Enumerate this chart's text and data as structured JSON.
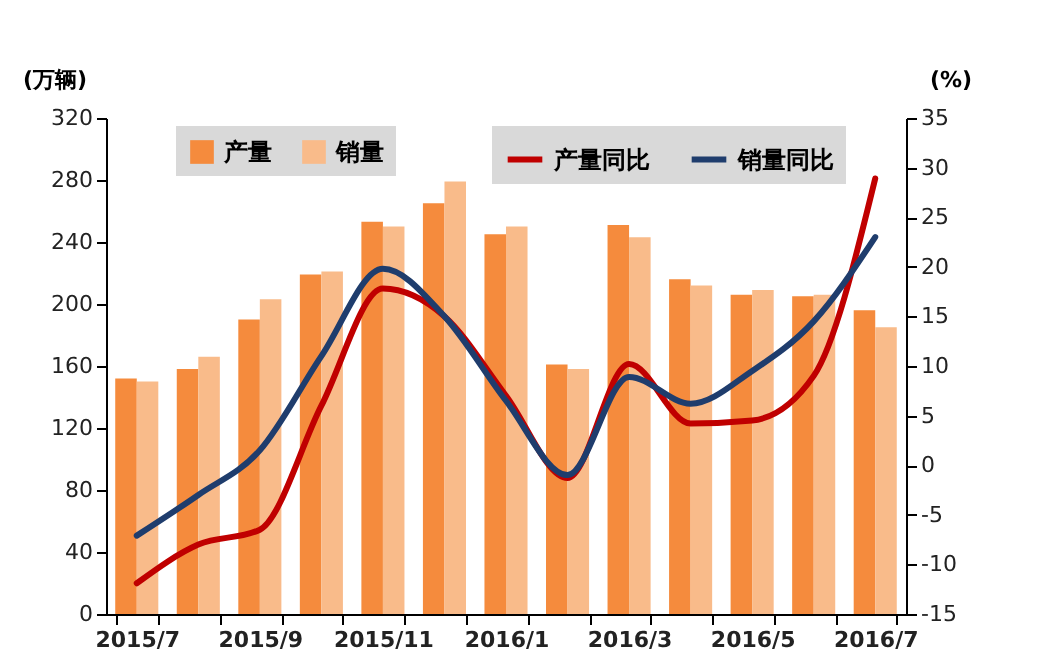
{
  "chart_data": {
    "type": "bar",
    "categories": [
      "2015/7",
      null,
      "2015/9",
      null,
      "2015/11",
      null,
      "2016/1",
      null,
      "2016/3",
      null,
      "2016/5",
      null,
      "2016/7"
    ],
    "ylabel": "(万辆)",
    "y2label": "(%)",
    "ylim": [
      0,
      320
    ],
    "yticks": [
      0,
      40,
      80,
      120,
      160,
      200,
      240,
      280,
      320
    ],
    "y2lim": [
      -15,
      35
    ],
    "y2ticks": [
      -15,
      -10,
      -5,
      0,
      5,
      10,
      15,
      20,
      25,
      30,
      35
    ],
    "series": [
      {
        "name": "产量",
        "color": "#f58b3d",
        "values": [
          152,
          158,
          190,
          219,
          253,
          265,
          245,
          161,
          251,
          216,
          206,
          205,
          196
        ]
      },
      {
        "name": "销量",
        "color": "#f9bb8a",
        "values": [
          150,
          166,
          203,
          221,
          250,
          279,
          250,
          158,
          243,
          212,
          209,
          206,
          185
        ]
      },
      {
        "name": "产量同比",
        "type": "line",
        "axis": "y2",
        "color": "#c00000",
        "values": [
          -11.9,
          -8,
          -6.5,
          6,
          17.8,
          15,
          7,
          -1.3,
          10.2,
          4.2,
          4.5,
          9,
          28.9
        ]
      },
      {
        "name": "销量同比",
        "type": "line",
        "axis": "y2",
        "color": "#1f3d6d",
        "values": [
          -7.1,
          -3,
          1.5,
          11,
          19.8,
          15,
          6.5,
          -1,
          8.9,
          6.2,
          9.5,
          14.5,
          23
        ]
      }
    ],
    "legend": "top",
    "grid": false,
    "marker": "none",
    "line_style": "solid"
  }
}
